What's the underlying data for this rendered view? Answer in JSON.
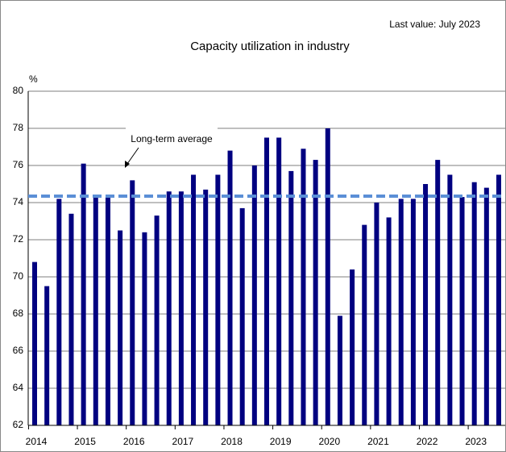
{
  "chart_data": {
    "type": "bar",
    "title": "Capacity utilization in industry",
    "subtitle": "Last value: July 2023",
    "y_unit": "%",
    "categories": [
      "2014",
      null,
      null,
      null,
      "2015",
      null,
      null,
      null,
      "2016",
      null,
      null,
      null,
      "2017",
      null,
      null,
      null,
      "2018",
      null,
      null,
      null,
      "2019",
      null,
      null,
      null,
      "2020",
      null,
      null,
      null,
      "2021",
      null,
      null,
      null,
      "2022",
      null,
      null,
      null,
      "2023",
      null,
      null
    ],
    "values": [
      70.8,
      69.5,
      74.2,
      73.4,
      76.1,
      74.3,
      74.3,
      72.5,
      75.2,
      72.4,
      73.3,
      74.6,
      74.6,
      75.5,
      74.7,
      75.5,
      76.8,
      73.7,
      76.0,
      77.5,
      77.5,
      75.7,
      76.9,
      76.3,
      78.0,
      67.9,
      70.4,
      72.8,
      74.0,
      73.2,
      74.2,
      74.2,
      75.0,
      76.3,
      75.5,
      74.3,
      75.1,
      74.8,
      75.5
    ],
    "color": "#000080",
    "ylim": [
      62,
      80
    ],
    "yticks": [
      62,
      64,
      66,
      68,
      70,
      72,
      74,
      76,
      78,
      80
    ],
    "grid": true,
    "average_line": {
      "label": "Long-term average",
      "value": 74.35,
      "color": "#5b8fd6"
    }
  }
}
